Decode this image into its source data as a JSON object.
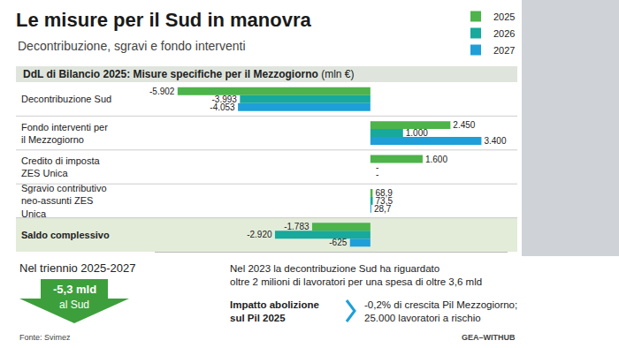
{
  "chart_data": {
    "type": "bar",
    "orientation": "horizontal",
    "title": "Le misure per il Sud in manovra",
    "subtitle": "Decontribuzione, sgravi e fondo interventi",
    "header": "DdL di Bilancio 2025: Misure specifiche per il Mezzogiorno",
    "unit": "(mln €)",
    "categories": [
      "Decontribuzione Sud",
      "Fondo interventi per il Mezzogiorno",
      "Credito di imposta ZES Unica",
      "Sgravio contributivo neo-assunti ZES Unica",
      "Saldo complessivo"
    ],
    "series": [
      {
        "name": "2025",
        "color": "#4db34a",
        "values": [
          -5902,
          2450,
          1600,
          68.9,
          -1783
        ],
        "value_labels": [
          "-5.902",
          "2.450",
          "1.600",
          "68,9",
          "-1.783"
        ]
      },
      {
        "name": "2026",
        "color": "#17a99b",
        "values": [
          -3993,
          1000,
          null,
          73.5,
          -2920
        ],
        "value_labels": [
          "-3.993",
          "1.000",
          "-",
          "73,5",
          "-2.920"
        ]
      },
      {
        "name": "2027",
        "color": "#1e9fd8",
        "values": [
          -4053,
          3400,
          null,
          28.7,
          -625
        ],
        "value_labels": [
          "-4.053",
          "3.400",
          "-",
          "28,7",
          "-625"
        ]
      }
    ],
    "xlim": [
      -6600,
      4200
    ],
    "tick_labels": "y",
    "grid": false,
    "legend": "top right",
    "data_labels": true,
    "annotations": {
      "triennio_label": "Nel triennio 2025-2027",
      "triennio_value": "-5,3 mld",
      "triennio_note": "al Sud",
      "note_2023": [
        "Nel 2023 la decontribuzione Sud ha riguardato",
        "oltre 2 milioni di lavoratori per una spesa di oltre 3,6 mld"
      ],
      "impact_label": [
        "Impatto abolizione",
        "sul Pil 2025"
      ],
      "impact_text": [
        "-0,2% di crescita Pil Mezzogiorno;",
        "25.000 lavoratori a rischio"
      ],
      "source": "Fonte: Svimez",
      "credit": "GEA–WITHUB"
    }
  }
}
